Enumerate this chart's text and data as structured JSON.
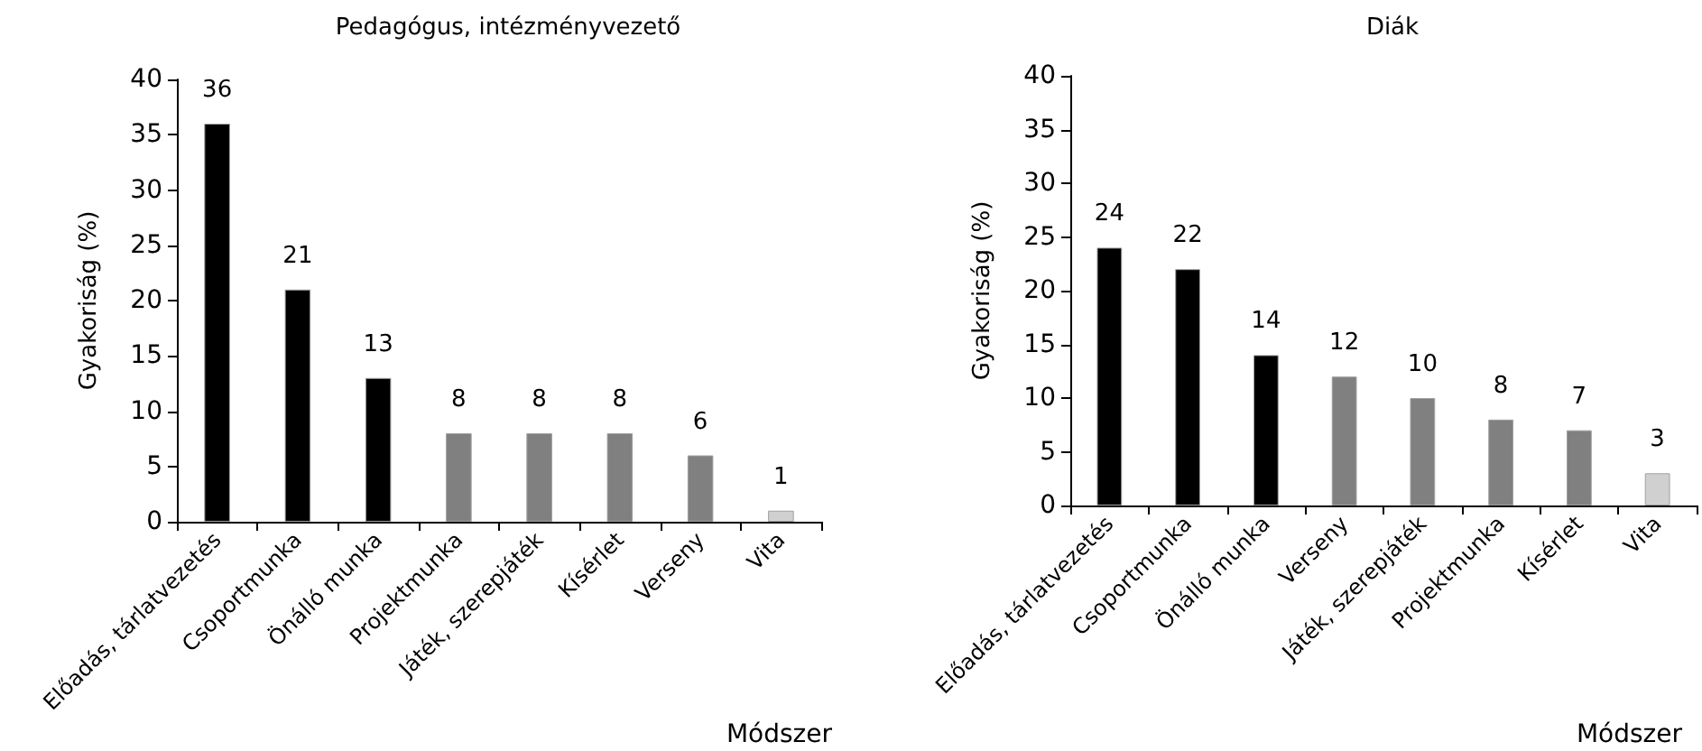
{
  "chart_data": [
    {
      "type": "bar",
      "title": "Pedagógus, intézményvezető",
      "xlabel": "Módszer",
      "ylabel": "Gyakoriság (%)",
      "categories": [
        "Előadás, tárlatvezetés",
        "Csoportmunka",
        "Önálló munka",
        "Projektmunka",
        "Játék, szerepjáték",
        "Kísérlet",
        "Verseny",
        "Vita"
      ],
      "values": [
        36,
        21,
        13,
        8,
        8,
        8,
        6,
        1
      ],
      "colors": [
        "#000000",
        "#000000",
        "#000000",
        "#808080",
        "#808080",
        "#808080",
        "#808080",
        "#d0d0d0"
      ],
      "ylim": [
        0,
        40
      ],
      "yticks": [
        0,
        5,
        10,
        15,
        20,
        25,
        30,
        35,
        40
      ],
      "data_labels": true
    },
    {
      "type": "bar",
      "title": "Diák",
      "xlabel": "Módszer",
      "ylabel": "Gyakoriság (%)",
      "categories": [
        "Előadás, tárlatvezetés",
        "Csoportmunka",
        "Önálló munka",
        "Verseny",
        "Játék, szerepjáték",
        "Projektmunka",
        "Kísérlet",
        "Vita"
      ],
      "values": [
        24,
        22,
        14,
        12,
        10,
        8,
        7,
        3
      ],
      "colors": [
        "#000000",
        "#000000",
        "#000000",
        "#808080",
        "#808080",
        "#808080",
        "#808080",
        "#d0d0d0"
      ],
      "ylim": [
        0,
        40
      ],
      "yticks": [
        0,
        5,
        10,
        15,
        20,
        25,
        30,
        35,
        40
      ],
      "data_labels": true
    }
  ]
}
